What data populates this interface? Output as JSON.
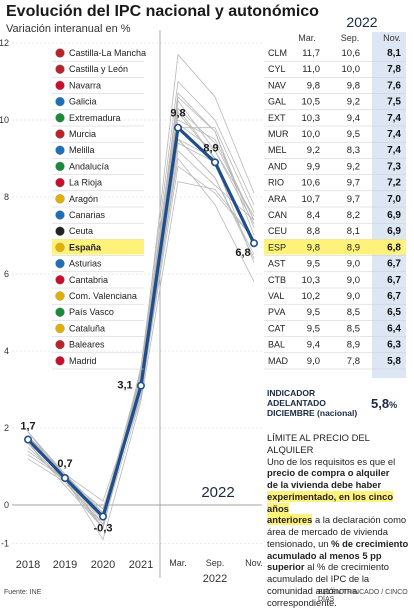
{
  "title": "Evolución del IPC nacional y autonómico",
  "subtitle": "Variación interanual en %",
  "colors": {
    "national_line": "#1f4e8c",
    "regional_lines": "#b8b8b8",
    "highlight": "#fff27a",
    "shaded_column": "#dde7f3",
    "text": "#222222",
    "grid": "#d5d5d5"
  },
  "chart_data": {
    "type": "line",
    "title": "Evolución del IPC nacional y autonómico",
    "subtitle": "Variación interanual en %",
    "x": [
      "2018",
      "2019",
      "2020",
      "2021",
      "Mar.",
      "Sep.",
      "Nov."
    ],
    "x_group_label": "2022",
    "ylim": [
      -1,
      12
    ],
    "y_ticks": [
      -1,
      0,
      2,
      4,
      6,
      8,
      10,
      12
    ],
    "grid": true,
    "highlight_series": {
      "code": "ESP",
      "name": "España",
      "values": [
        1.7,
        0.7,
        -0.3,
        3.1,
        9.8,
        8.9,
        6.8
      ],
      "labels": [
        "1,7",
        "0,7",
        "-0,3",
        "3,1",
        "9,8",
        "8,9",
        "6,8"
      ]
    },
    "regional_series": [
      {
        "code": "CLM",
        "values": [
          1.9,
          0.8,
          -0.5,
          3.4,
          11.7,
          10.6,
          8.1
        ]
      },
      {
        "code": "CYL",
        "values": [
          1.8,
          0.8,
          -0.6,
          3.6,
          11.0,
          10.0,
          7.8
        ]
      },
      {
        "code": "NAV",
        "values": [
          1.8,
          0.7,
          -0.2,
          3.5,
          9.8,
          9.8,
          7.6
        ]
      },
      {
        "code": "GAL",
        "values": [
          1.8,
          0.7,
          -0.4,
          3.4,
          10.5,
          9.2,
          7.5
        ]
      },
      {
        "code": "EXT",
        "values": [
          1.6,
          0.5,
          -0.6,
          3.3,
          10.3,
          9.4,
          7.4
        ]
      },
      {
        "code": "MUR",
        "values": [
          1.6,
          0.6,
          -0.3,
          3.2,
          10.0,
          9.5,
          7.4
        ]
      },
      {
        "code": "MEL",
        "values": [
          1.4,
          0.7,
          -0.1,
          2.8,
          9.2,
          8.3,
          7.4
        ]
      },
      {
        "code": "AND",
        "values": [
          1.5,
          0.6,
          -0.6,
          3.2,
          9.9,
          9.2,
          7.3
        ]
      },
      {
        "code": "RIO",
        "values": [
          1.8,
          0.7,
          -0.6,
          3.5,
          10.6,
          9.7,
          7.2
        ]
      },
      {
        "code": "ARA",
        "values": [
          1.7,
          0.8,
          -0.2,
          3.2,
          10.7,
          9.7,
          7.0
        ]
      },
      {
        "code": "CAN",
        "values": [
          1.3,
          0.7,
          -0.9,
          2.7,
          8.4,
          8.2,
          6.9
        ]
      },
      {
        "code": "CEU",
        "values": [
          1.2,
          0.6,
          -0.3,
          2.9,
          8.8,
          8.1,
          6.9
        ]
      },
      {
        "code": "AST",
        "values": [
          1.8,
          0.7,
          -0.1,
          3.0,
          9.5,
          9.0,
          6.7
        ]
      },
      {
        "code": "CTB",
        "values": [
          1.9,
          0.8,
          -0.4,
          3.3,
          10.3,
          9.0,
          6.7
        ]
      },
      {
        "code": "VAL",
        "values": [
          1.6,
          0.8,
          -0.3,
          3.0,
          10.2,
          9.0,
          6.7
        ]
      },
      {
        "code": "PVA",
        "values": [
          1.9,
          0.7,
          -0.1,
          3.2,
          9.5,
          8.5,
          6.5
        ]
      },
      {
        "code": "CAT",
        "values": [
          1.7,
          0.8,
          0.1,
          3.0,
          9.5,
          8.5,
          6.4
        ]
      },
      {
        "code": "BAL",
        "values": [
          1.5,
          0.6,
          -0.5,
          2.8,
          9.4,
          8.9,
          6.3
        ]
      },
      {
        "code": "MAD",
        "values": [
          1.8,
          0.6,
          -0.3,
          3.1,
          9.0,
          7.8,
          5.8
        ]
      }
    ]
  },
  "table": {
    "year_heading": "2022",
    "headers": [
      "Mar.",
      "Sep.",
      "Nov."
    ],
    "rows": [
      {
        "icon": "clm-flag-icon",
        "name": "Castilla-La Mancha",
        "code": "CLM",
        "mar": "11,7",
        "sep": "10,6",
        "nov": "8,1"
      },
      {
        "icon": "cyl-flag-icon",
        "name": "Castilla y León",
        "code": "CYL",
        "mar": "11,0",
        "sep": "10,0",
        "nov": "7,8"
      },
      {
        "icon": "navarra-flag-icon",
        "name": "Navarra",
        "code": "NAV",
        "mar": "9,8",
        "sep": "9,8",
        "nov": "7,6"
      },
      {
        "icon": "galicia-flag-icon",
        "name": "Galicia",
        "code": "GAL",
        "mar": "10,5",
        "sep": "9,2",
        "nov": "7,5"
      },
      {
        "icon": "extremadura-flag-icon",
        "name": "Extremadura",
        "code": "EXT",
        "mar": "10,3",
        "sep": "9,4",
        "nov": "7,4"
      },
      {
        "icon": "murcia-flag-icon",
        "name": "Murcia",
        "code": "MUR",
        "mar": "10,0",
        "sep": "9,5",
        "nov": "7,4"
      },
      {
        "icon": "melilla-flag-icon",
        "name": "Melilla",
        "code": "MEL",
        "mar": "9,2",
        "sep": "8,3",
        "nov": "7,4"
      },
      {
        "icon": "andalucia-flag-icon",
        "name": "Andalucía",
        "code": "AND",
        "mar": "9,9",
        "sep": "9,2",
        "nov": "7,3"
      },
      {
        "icon": "larioja-flag-icon",
        "name": "La Rioja",
        "code": "RIO",
        "mar": "10,6",
        "sep": "9,7",
        "nov": "7,2"
      },
      {
        "icon": "aragon-flag-icon",
        "name": "Aragón",
        "code": "ARA",
        "mar": "10,7",
        "sep": "9,7",
        "nov": "7,0"
      },
      {
        "icon": "canarias-flag-icon",
        "name": "Canarias",
        "code": "CAN",
        "mar": "8,4",
        "sep": "8,2",
        "nov": "6,9"
      },
      {
        "icon": "ceuta-flag-icon",
        "name": "Ceuta",
        "code": "CEU",
        "mar": "8,8",
        "sep": "8,1",
        "nov": "6,9"
      },
      {
        "icon": "espana-flag-icon",
        "name": "España",
        "code": "ESP",
        "mar": "9,8",
        "sep": "8,9",
        "nov": "6,8",
        "highlight": true
      },
      {
        "icon": "asturias-flag-icon",
        "name": "Asturias",
        "code": "AST",
        "mar": "9,5",
        "sep": "9,0",
        "nov": "6,7"
      },
      {
        "icon": "cantabria-flag-icon",
        "name": "Cantabria",
        "code": "CTB",
        "mar": "10,3",
        "sep": "9,0",
        "nov": "6,7"
      },
      {
        "icon": "valencia-flag-icon",
        "name": "Com. Valenciana",
        "code": "VAL",
        "mar": "10,2",
        "sep": "9,0",
        "nov": "6,7"
      },
      {
        "icon": "paisvasco-flag-icon",
        "name": "País Vasco",
        "code": "PVA",
        "mar": "9,5",
        "sep": "8,5",
        "nov": "6,5"
      },
      {
        "icon": "cataluna-flag-icon",
        "name": "Cataluña",
        "code": "CAT",
        "mar": "9,5",
        "sep": "8,5",
        "nov": "6,4"
      },
      {
        "icon": "baleares-flag-icon",
        "name": "Baleares",
        "code": "BAL",
        "mar": "9,4",
        "sep": "8,9",
        "nov": "6,3"
      },
      {
        "icon": "madrid-flag-icon",
        "name": "Madrid",
        "code": "MAD",
        "mar": "9,0",
        "sep": "7,8",
        "nov": "5,8"
      }
    ]
  },
  "indicator": {
    "label_line1": "INDICADOR",
    "label_line2": "ADELANTADO",
    "label_line3": "DICIEMBRE (nacional)",
    "value": "5,8",
    "unit": "%"
  },
  "rent_note": {
    "p1": "LÍMITE AL PRECIO DEL ALQUILER",
    "p2": "Uno de los requisitos es que el",
    "p3": "precio de compra o alquiler",
    "p4": "de la vivienda debe haber",
    "p5": "experimentado, en los cinco años",
    "p6": "anteriores",
    "p7": " a la declaración como área de mercado de vivienda tensionado, un ",
    "p8": "% de crecimiento acumulado al menos 5 pp superior",
    "p9": " al % de crecimiento acumulado del IPC de la comunidad autónoma correspondiente."
  },
  "footer": {
    "source": "Fuente: INE",
    "credit": "BELÉN TRINCADO / CINCO DÍAS"
  }
}
